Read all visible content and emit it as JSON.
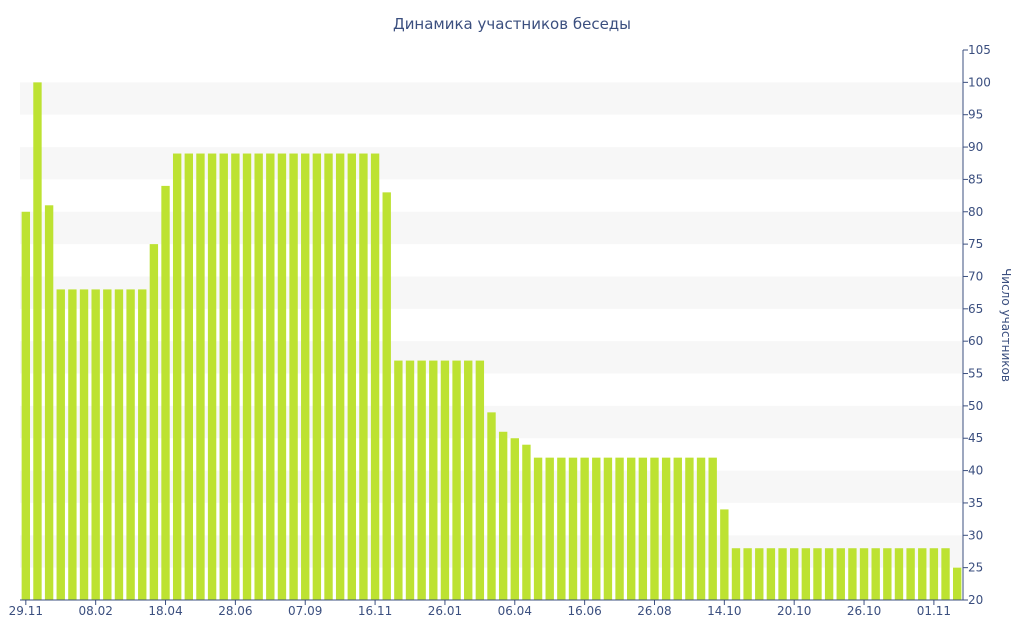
{
  "chart_data": {
    "type": "bar",
    "title": "Динамика участников беседы",
    "xlabel": "",
    "ylabel": "Число участников",
    "ylim": [
      20,
      105
    ],
    "y_ticks": [
      20,
      25,
      30,
      35,
      40,
      45,
      50,
      55,
      60,
      65,
      70,
      75,
      80,
      85,
      90,
      95,
      100,
      105
    ],
    "y_axis_side": "right",
    "x_tick_labels": [
      {
        "index": 0,
        "label": "29.11"
      },
      {
        "index": 6,
        "label": "08.02"
      },
      {
        "index": 12,
        "label": "18.04"
      },
      {
        "index": 18,
        "label": "28.06"
      },
      {
        "index": 24,
        "label": "07.09"
      },
      {
        "index": 30,
        "label": "16.11"
      },
      {
        "index": 36,
        "label": "26.01"
      },
      {
        "index": 42,
        "label": "06.04"
      },
      {
        "index": 48,
        "label": "16.06"
      },
      {
        "index": 54,
        "label": "26.08"
      },
      {
        "index": 60,
        "label": "14.10"
      },
      {
        "index": 66,
        "label": "20.10"
      },
      {
        "index": 72,
        "label": "26.10"
      },
      {
        "index": 78,
        "label": "01.11"
      }
    ],
    "values": [
      80,
      100,
      81,
      68,
      68,
      68,
      68,
      68,
      68,
      68,
      68,
      75,
      84,
      89,
      89,
      89,
      89,
      89,
      89,
      89,
      89,
      89,
      89,
      89,
      89,
      89,
      89,
      89,
      89,
      89,
      89,
      83,
      57,
      57,
      57,
      57,
      57,
      57,
      57,
      57,
      49,
      46,
      45,
      44,
      42,
      42,
      42,
      42,
      42,
      42,
      42,
      42,
      42,
      42,
      42,
      42,
      42,
      42,
      42,
      42,
      34,
      28,
      28,
      28,
      28,
      28,
      28,
      28,
      28,
      28,
      28,
      28,
      28,
      28,
      28,
      28,
      28,
      28,
      28,
      28,
      25
    ],
    "colors": {
      "bar": "#bde232",
      "band": "#f7f7f7",
      "text": "#3b4f7f",
      "axis": "#3b4f7f"
    },
    "grid": "alternating horizontal bands"
  }
}
